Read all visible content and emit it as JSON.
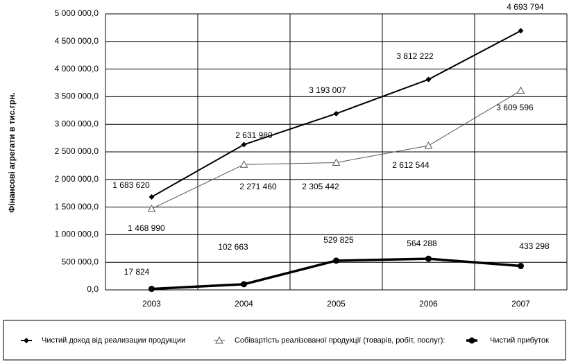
{
  "chart_data": {
    "type": "line",
    "y_label": "Фінансові агрегати в тис.грн.",
    "categories": [
      "2003",
      "2004",
      "2005",
      "2006",
      "2007"
    ],
    "series": [
      {
        "name": "Чистий доход  від реализации  продукции",
        "color": "#000000",
        "marker": "diamond",
        "values": [
          1683620,
          2631980,
          3193007,
          3812222,
          4693794
        ],
        "value_labels": [
          "1 683 620",
          "2 631 980",
          "3 193 007",
          "3 812 222",
          "4 693 794"
        ]
      },
      {
        "name": "Собівартість реалізованої продукції (товарів, робіт, послуг):",
        "color": "#555555",
        "marker": "triangle",
        "values": [
          1468990,
          2271460,
          2305442,
          2612544,
          3609596
        ],
        "value_labels": [
          "1 468 990",
          "2 271 460",
          "2 305 442",
          "2 612 544",
          "3 609 596"
        ]
      },
      {
        "name": "Чистий прибуток",
        "color": "#000000",
        "marker": "circle",
        "values": [
          17824,
          102663,
          529825,
          564288,
          433298
        ],
        "value_labels": [
          "17 824",
          "102 663",
          "529 825",
          "564 288",
          "433 298"
        ]
      }
    ],
    "ylim": [
      0,
      5000000
    ],
    "yticks": [
      {
        "value": 0,
        "label": "0,0"
      },
      {
        "value": 500000,
        "label": "500 000,0"
      },
      {
        "value": 1000000,
        "label": "1 000 000,0"
      },
      {
        "value": 1500000,
        "label": "1 500 000,0"
      },
      {
        "value": 2000000,
        "label": "2 000 000,0"
      },
      {
        "value": 2500000,
        "label": "2 500 000,0"
      },
      {
        "value": 3000000,
        "label": "3 000 000,0"
      },
      {
        "value": 3500000,
        "label": "3 500 000,0"
      },
      {
        "value": 4000000,
        "label": "4 000 000,0"
      },
      {
        "value": 4500000,
        "label": "4 500 000,0"
      },
      {
        "value": 5000000,
        "label": "5 000 000,0"
      }
    ],
    "grid": true
  }
}
